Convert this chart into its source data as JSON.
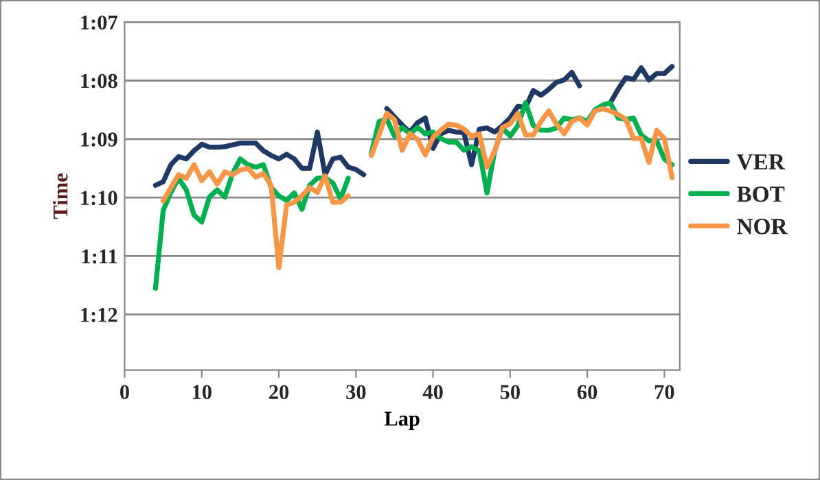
{
  "chart_data": {
    "type": "line",
    "xlabel": "Lap",
    "ylabel": "Time",
    "x": [
      4,
      5,
      6,
      7,
      8,
      9,
      10,
      11,
      12,
      13,
      14,
      15,
      16,
      17,
      18,
      19,
      20,
      21,
      22,
      23,
      24,
      25,
      26,
      27,
      28,
      29,
      30,
      31,
      32,
      33,
      34,
      35,
      36,
      37,
      38,
      39,
      40,
      41,
      42,
      43,
      44,
      45,
      46,
      47,
      48,
      49,
      50,
      51,
      52,
      53,
      54,
      55,
      56,
      57,
      58,
      59,
      60,
      61,
      62,
      63,
      64,
      65,
      66,
      67,
      68,
      69,
      70,
      71
    ],
    "series": [
      {
        "name": "VER",
        "color": "#1f3864",
        "values": [
          69.79,
          69.73,
          69.44,
          69.3,
          69.34,
          69.2,
          69.09,
          69.14,
          69.14,
          69.13,
          69.1,
          69.07,
          69.07,
          69.07,
          69.2,
          69.28,
          69.34,
          69.26,
          69.34,
          69.5,
          69.5,
          68.88,
          69.61,
          69.34,
          69.31,
          69.48,
          69.52,
          69.61,
          null,
          null,
          68.48,
          68.62,
          68.76,
          68.88,
          68.72,
          68.64,
          69.16,
          68.91,
          68.85,
          68.88,
          68.89,
          69.44,
          68.83,
          68.81,
          68.88,
          68.77,
          68.64,
          68.44,
          68.46,
          68.17,
          68.25,
          68.15,
          68.03,
          67.99,
          67.86,
          68.09,
          null,
          null,
          null,
          68.38,
          68.15,
          67.95,
          67.98,
          67.78,
          67.99,
          67.88,
          67.88,
          67.76
        ]
      },
      {
        "name": "BOT",
        "color": "#00b050",
        "values": [
          71.55,
          70.22,
          69.91,
          69.67,
          69.87,
          70.3,
          70.42,
          69.99,
          69.87,
          69.99,
          69.59,
          69.34,
          69.44,
          69.48,
          69.44,
          69.83,
          69.97,
          70.05,
          69.92,
          70.2,
          69.79,
          69.67,
          69.66,
          69.75,
          70.02,
          69.67,
          null,
          null,
          69.24,
          68.7,
          68.66,
          68.95,
          68.8,
          68.91,
          68.8,
          68.91,
          68.88,
          68.99,
          69.05,
          69.05,
          69.19,
          69.13,
          69.2,
          69.92,
          69.2,
          68.81,
          68.95,
          68.77,
          68.38,
          68.77,
          68.85,
          68.85,
          68.81,
          68.64,
          68.67,
          68.64,
          68.7,
          68.5,
          68.42,
          68.38,
          68.64,
          68.66,
          68.64,
          68.93,
          69.03,
          69.03,
          69.34,
          69.44
        ]
      },
      {
        "name": "NOR",
        "color": "#f79646",
        "values": [
          null,
          70.06,
          69.83,
          69.61,
          69.67,
          69.44,
          69.71,
          69.56,
          69.77,
          69.56,
          69.61,
          69.53,
          69.5,
          69.65,
          69.59,
          69.79,
          71.2,
          70.13,
          70.08,
          69.97,
          69.83,
          69.91,
          69.63,
          70.08,
          70.08,
          69.97,
          null,
          null,
          69.28,
          68.93,
          68.56,
          68.67,
          69.19,
          68.91,
          69.01,
          69.27,
          68.97,
          68.85,
          68.75,
          68.76,
          68.83,
          68.95,
          68.91,
          69.48,
          69.2,
          68.8,
          68.74,
          68.56,
          68.93,
          68.93,
          68.7,
          68.52,
          68.74,
          68.91,
          68.7,
          68.64,
          68.76,
          68.52,
          68.48,
          68.52,
          68.58,
          68.66,
          68.99,
          68.99,
          69.4,
          68.85,
          68.99,
          69.66
        ]
      }
    ],
    "xlim": [
      0,
      72
    ],
    "xticks": [
      0,
      10,
      20,
      30,
      40,
      50,
      60,
      70
    ],
    "ylim": [
      72.95,
      67
    ],
    "yticks": [
      {
        "value": 67,
        "label": "1:07"
      },
      {
        "value": 68,
        "label": "1:08"
      },
      {
        "value": 69,
        "label": "1:09"
      },
      {
        "value": 70,
        "label": "1:10"
      },
      {
        "value": 71,
        "label": "1:11"
      },
      {
        "value": 72,
        "label": "1:12"
      }
    ],
    "grid": "y",
    "legend": "right",
    "marker": "none",
    "line_style": "solid"
  }
}
